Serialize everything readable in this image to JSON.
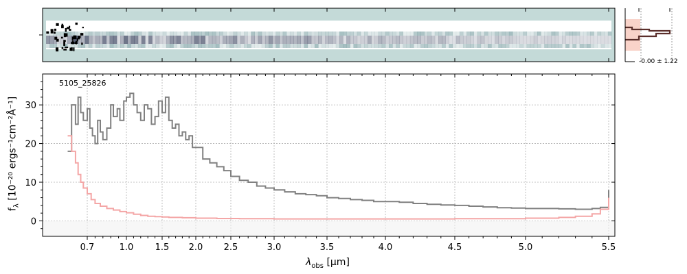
{
  "chart_data": {
    "type": "line",
    "object_label": "5105_25826",
    "xlabel_main": "λ",
    "xlabel_sub": "obs",
    "xlabel_unit": "[μm]",
    "ylabel_main": "f",
    "ylabel_sub": "λ",
    "ylabel_unit": "[10⁻²⁰ ergs⁻¹cm⁻²Å⁻¹]",
    "x_ticks": [
      {
        "label": "0.7",
        "value": 0.7
      },
      {
        "label": "1.0",
        "value": 1.0
      },
      {
        "label": "1.5",
        "value": 1.5
      },
      {
        "label": "2.0",
        "value": 2.0
      },
      {
        "label": "2.5",
        "value": 2.5
      },
      {
        "label": "3.0",
        "value": 3.0
      },
      {
        "label": "3.5",
        "value": 3.5
      },
      {
        "label": "4.0",
        "value": 4.0
      },
      {
        "label": "4.5",
        "value": 4.5
      },
      {
        "label": "5.0",
        "value": 5.0
      },
      {
        "label": "5.5",
        "value": 5.5
      }
    ],
    "y_ticks": [
      0,
      10,
      20,
      30
    ],
    "ylim": [
      -4,
      38
    ],
    "xlim": [
      0.5,
      5.52
    ],
    "grid": true,
    "profile_label": "-0.00 ± 1.22",
    "colors": {
      "flux": "#808080",
      "error": "#f4a6a6",
      "profile_fill": "#f9d3c9",
      "profile_line": "#5a2e2a",
      "spectrum_bg": "#c4dad8",
      "trace": "#1e2847"
    },
    "series": [
      {
        "role": "flux",
        "x": [
          0.55,
          0.58,
          0.61,
          0.63,
          0.65,
          0.67,
          0.7,
          0.72,
          0.74,
          0.76,
          0.78,
          0.8,
          0.82,
          0.85,
          0.88,
          0.9,
          0.93,
          0.95,
          0.98,
          1.0,
          1.05,
          1.1,
          1.15,
          1.2,
          1.25,
          1.3,
          1.35,
          1.4,
          1.45,
          1.5,
          1.55,
          1.6,
          1.65,
          1.7,
          1.75,
          1.8,
          1.85,
          1.9,
          1.95,
          2.0,
          2.1,
          2.2,
          2.3,
          2.4,
          2.5,
          2.6,
          2.7,
          2.8,
          2.9,
          3.0,
          3.1,
          3.2,
          3.3,
          3.4,
          3.5,
          3.6,
          3.7,
          3.8,
          3.9,
          4.0,
          4.1,
          4.2,
          4.3,
          4.4,
          4.5,
          4.6,
          4.7,
          4.8,
          4.9,
          5.0,
          5.1,
          5.2,
          5.3,
          5.4,
          5.45,
          5.5
        ],
        "y": [
          18,
          30,
          25,
          32,
          28,
          26,
          29,
          24,
          22,
          20,
          26,
          23,
          21,
          24,
          30,
          27,
          29,
          26,
          31,
          32,
          33,
          30,
          28,
          26,
          30,
          29,
          25,
          27,
          31,
          28,
          32,
          26,
          24,
          25,
          22,
          23,
          21,
          22,
          19,
          19,
          16,
          15,
          14,
          13,
          11.5,
          10.5,
          10,
          9,
          8.5,
          8,
          7.5,
          7,
          6.8,
          6.5,
          6,
          5.8,
          5.5,
          5.3,
          5,
          5,
          4.8,
          4.5,
          4.3,
          4.1,
          4,
          3.8,
          3.6,
          3.4,
          3.3,
          3.2,
          3.2,
          3.1,
          3,
          3.2,
          3.5,
          8
        ]
      },
      {
        "role": "error",
        "x": [
          0.55,
          0.58,
          0.61,
          0.63,
          0.65,
          0.67,
          0.7,
          0.73,
          0.76,
          0.8,
          0.85,
          0.9,
          0.95,
          1.0,
          1.1,
          1.2,
          1.3,
          1.4,
          1.5,
          1.6,
          1.8,
          2.0,
          2.3,
          2.6,
          3.0,
          3.5,
          4.0,
          4.5,
          5.0,
          5.2,
          5.3,
          5.4,
          5.45,
          5.5
        ],
        "y": [
          22,
          18,
          15,
          12,
          10,
          8.5,
          7,
          5.5,
          4.5,
          3.8,
          3.2,
          2.8,
          2.4,
          2.1,
          1.7,
          1.4,
          1.2,
          1.1,
          1.0,
          0.9,
          0.8,
          0.7,
          0.6,
          0.55,
          0.5,
          0.5,
          0.5,
          0.55,
          0.7,
          0.9,
          1.2,
          1.8,
          3,
          6
        ]
      }
    ]
  }
}
